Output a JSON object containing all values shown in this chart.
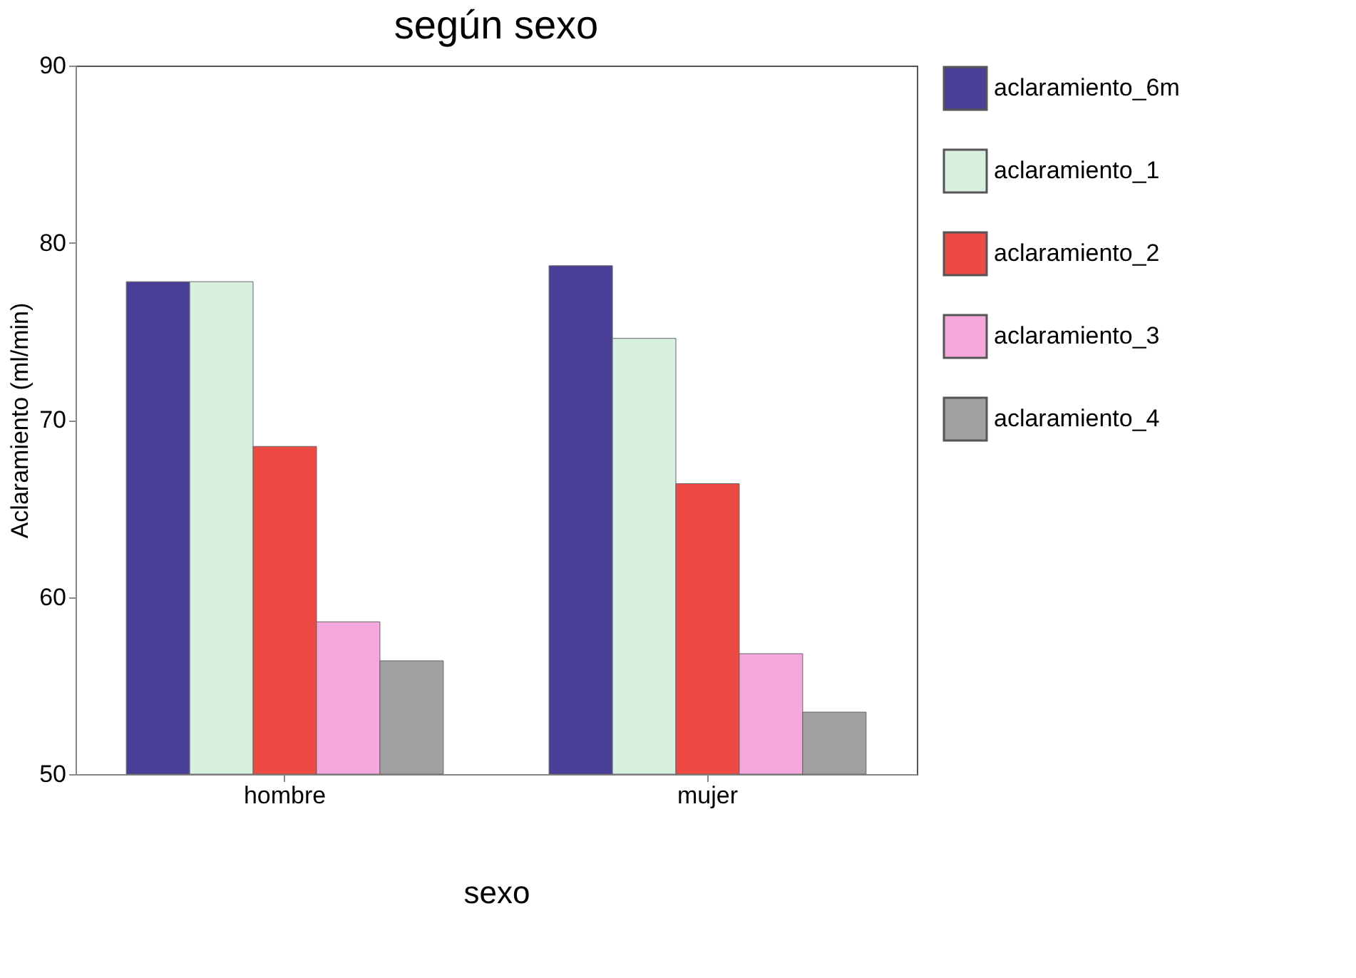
{
  "chart_data": {
    "type": "bar",
    "title": "según sexo",
    "xlabel": "sexo",
    "ylabel": "Aclaramiento (ml/min)",
    "categories": [
      "hombre",
      "mujer"
    ],
    "series": [
      {
        "name": "aclaramiento_6m",
        "color": "#4a3f96",
        "values": [
          77.8,
          78.7
        ]
      },
      {
        "name": "aclaramiento_1",
        "color": "#d8f0e0",
        "values": [
          77.8,
          74.6
        ]
      },
      {
        "name": "aclaramiento_2",
        "color": "#ee4a44",
        "values": [
          68.5,
          66.4
        ]
      },
      {
        "name": "aclaramiento_3",
        "color": "#f4a8dc",
        "values": [
          58.6,
          56.8
        ]
      },
      {
        "name": "aclaramiento_4",
        "color": "#a0a0a0",
        "values": [
          56.4,
          53.5
        ]
      }
    ],
    "ylim": [
      50,
      90
    ],
    "yticks": [
      50,
      60,
      70,
      80,
      90
    ],
    "grid": false,
    "legend": "right"
  }
}
